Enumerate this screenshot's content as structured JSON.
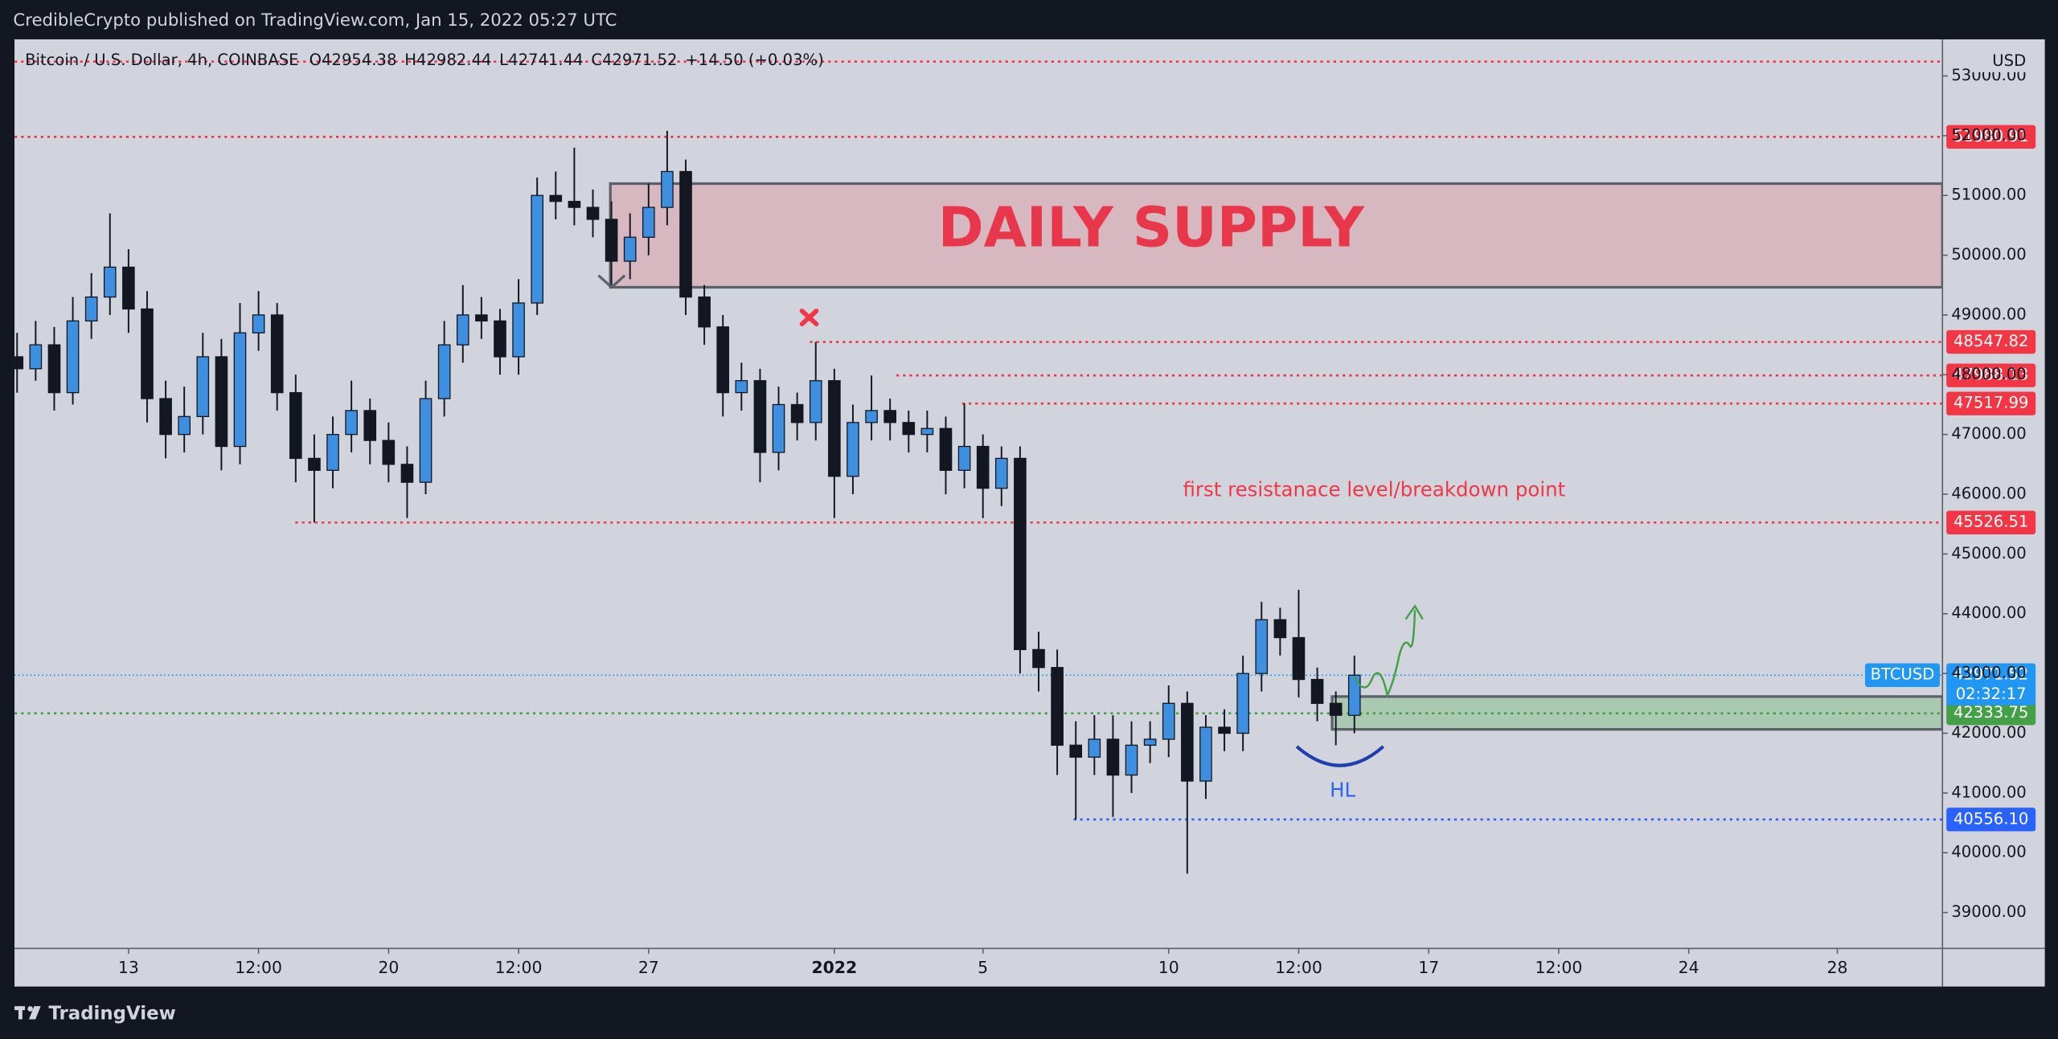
{
  "header": {
    "publisher": "CredibleCrypto published on TradingView.com, Jan 15, 2022 05:27 UTC"
  },
  "footer": {
    "brand": "TradingView"
  },
  "chart_data": {
    "type": "candlestick",
    "title": "Bitcoin / U.S. Dollar, 4h, COINBASE",
    "ohlc_legend": [
      {
        "name": "O",
        "value": 42954.38
      },
      {
        "name": "H",
        "value": 42982.44
      },
      {
        "name": "L",
        "value": 42741.44
      },
      {
        "name": "C",
        "value": 42971.52
      }
    ],
    "change": "+14.50 (+0.03%)",
    "currency": "USD",
    "up_color": "#3f8fe0",
    "down_color": "#131722",
    "x": [
      -3,
      -2.5,
      -2,
      -1.5,
      -1,
      -0.5,
      0,
      0.5,
      1,
      1.5,
      2,
      2.5,
      3,
      3.5,
      4,
      4.5,
      5,
      5.5,
      6,
      6.5,
      7,
      7.5,
      8,
      8.5,
      9,
      9.5,
      10,
      10.5,
      11,
      11.5,
      12,
      12.5,
      13,
      13.5,
      14,
      14.5,
      15,
      15.5,
      16,
      16.5,
      17,
      17.5,
      18,
      18.5,
      19,
      19.5,
      20,
      20.5,
      21,
      21.5,
      22,
      22.5,
      23,
      23.5,
      24,
      24.5,
      25,
      25.5,
      26,
      26.5,
      27,
      27.5,
      28,
      28.5,
      29,
      29.5,
      30,
      30.5,
      31,
      31.5,
      32,
      32.5,
      33
    ],
    "open": [
      48300,
      48100,
      48500,
      47700,
      48900,
      49300,
      49800,
      49100,
      47600,
      47000,
      47300,
      48300,
      46800,
      48700,
      49000,
      47700,
      46600,
      46400,
      47000,
      47400,
      46900,
      46500,
      46200,
      47600,
      48500,
      49000,
      48900,
      48300,
      49200,
      51000,
      50900,
      50800,
      50600,
      49900,
      50300,
      50800,
      51400,
      49300,
      48800,
      47700,
      47900,
      46700,
      47500,
      47200,
      47900,
      46300,
      47200,
      47400,
      47200,
      47000,
      47100,
      46400,
      46800,
      46100,
      46600,
      43400,
      43100,
      41800,
      41600,
      41900,
      41300,
      41800,
      41900,
      42500,
      41200,
      42100,
      42000,
      43000,
      43900,
      43600,
      42900,
      42500,
      42300
    ],
    "high": [
      48700,
      48900,
      48800,
      49300,
      49700,
      50700,
      50100,
      49400,
      47900,
      47800,
      48700,
      48600,
      49200,
      49400,
      49200,
      48000,
      47000,
      47300,
      47900,
      47600,
      47200,
      46800,
      47900,
      48900,
      49500,
      49300,
      49100,
      49600,
      51300,
      51400,
      51800,
      51100,
      50900,
      50700,
      51200,
      52080,
      51600,
      49500,
      49000,
      48200,
      48100,
      47800,
      47700,
      48547.82,
      48100,
      47500,
      47988.13,
      47600,
      47400,
      47400,
      47300,
      47517.99,
      47000,
      46800,
      46800,
      43700,
      43400,
      42200,
      42300,
      42300,
      42200,
      42200,
      42800,
      42700,
      42300,
      42400,
      43300,
      44200,
      44100,
      44400,
      43100,
      42700,
      43300
    ],
    "low": [
      47700,
      47900,
      47400,
      47500,
      48600,
      49000,
      48700,
      47200,
      46600,
      46700,
      47000,
      46400,
      46500,
      48400,
      47400,
      46200,
      45526.51,
      46100,
      46700,
      46500,
      46200,
      45600,
      46000,
      47300,
      48200,
      48600,
      48000,
      48000,
      49000,
      50600,
      50500,
      50300,
      49500,
      49600,
      50000,
      50500,
      49000,
      48500,
      47300,
      47400,
      46200,
      46400,
      46900,
      46900,
      45600,
      46000,
      46900,
      46900,
      46700,
      46700,
      46000,
      46100,
      45600,
      45800,
      43000,
      42700,
      41300,
      40556.1,
      41300,
      40600,
      41000,
      41500,
      41600,
      39650,
      40900,
      41700,
      41700,
      42700,
      43300,
      42600,
      42200,
      41800,
      42000
    ],
    "close": [
      48100,
      48500,
      47700,
      48900,
      49300,
      49800,
      49100,
      47600,
      47000,
      47300,
      48300,
      46800,
      48700,
      49000,
      47700,
      46600,
      46400,
      47000,
      47400,
      46900,
      46500,
      46200,
      47600,
      48500,
      49000,
      48900,
      48300,
      49200,
      51000,
      50900,
      50800,
      50600,
      49900,
      50300,
      50800,
      51400,
      49300,
      48800,
      47700,
      47900,
      46700,
      47500,
      47200,
      47900,
      46300,
      47200,
      47400,
      47200,
      47000,
      47100,
      46400,
      46800,
      46100,
      46600,
      43400,
      43100,
      41800,
      41600,
      41900,
      41300,
      41800,
      41900,
      42500,
      41200,
      42100,
      42000,
      43000,
      43900,
      43600,
      42900,
      42500,
      42300,
      42971.52
    ],
    "xlim": [
      -3.07,
      48.83
    ],
    "xticks": [
      {
        "value": 0,
        "label": "13"
      },
      {
        "value": 3.5,
        "label": "12:00"
      },
      {
        "value": 7,
        "label": "20"
      },
      {
        "value": 10.5,
        "label": "12:00"
      },
      {
        "value": 14,
        "label": "27"
      },
      {
        "value": 19,
        "label": "2022"
      },
      {
        "value": 23,
        "label": "5"
      },
      {
        "value": 28,
        "label": "10"
      },
      {
        "value": 31.5,
        "label": "12:00"
      },
      {
        "value": 35,
        "label": "17"
      },
      {
        "value": 38.5,
        "label": "12:00"
      },
      {
        "value": 42,
        "label": "24"
      },
      {
        "value": 46,
        "label": "28"
      }
    ],
    "ylim": [
      38398,
      53612
    ],
    "yticks": [
      {
        "value": 39000,
        "label": "39000.00"
      },
      {
        "value": 40000,
        "label": "40000.00"
      },
      {
        "value": 41000,
        "label": "41000.00"
      },
      {
        "value": 42000,
        "label": "42000.00"
      },
      {
        "value": 43000,
        "label": "43000.00"
      },
      {
        "value": 44000,
        "label": "44000.00"
      },
      {
        "value": 45000,
        "label": "45000.00"
      },
      {
        "value": 46000,
        "label": "46000.00"
      },
      {
        "value": 47000,
        "label": "47000.00"
      },
      {
        "value": 48000,
        "label": "48000.00"
      },
      {
        "value": 49000,
        "label": "49000.00"
      },
      {
        "value": 50000,
        "label": "50000.00"
      },
      {
        "value": 51000,
        "label": "51000.00"
      },
      {
        "value": 52000,
        "label": "52000.00"
      },
      {
        "value": 53000,
        "label": "53000.00"
      }
    ],
    "levels": [
      {
        "value": 53239,
        "color": "#f23645",
        "badge": false
      },
      {
        "value": 51980.91,
        "color": "#f23645",
        "badge": true
      },
      {
        "value": 48547.82,
        "color": "#f23645",
        "from": 18.34,
        "badge": true
      },
      {
        "value": 47988.13,
        "color": "#f23645",
        "from": 20.67,
        "badge": true
      },
      {
        "value": 47517.99,
        "color": "#f23645",
        "from": 22.44,
        "badge": true
      },
      {
        "value": 45526.51,
        "color": "#f23645",
        "from": 4.49,
        "badge": true
      },
      {
        "value": 42333.75,
        "color": "#43a047",
        "badge": true
      },
      {
        "value": 40556.1,
        "label": "40556.10",
        "color": "#2962ff",
        "from": 25.44,
        "badge": true
      }
    ],
    "zones": [
      {
        "name": "DAILY SUPPLY",
        "low": 49463,
        "high": 51198,
        "from": 12.97,
        "fill": "rgba(242,54,69,0.18)"
      },
      {
        "low": 42065,
        "high": 42614,
        "from": 32.4,
        "fill": "rgba(76,175,80,0.3)"
      }
    ],
    "annotations": [
      "first resistanace level/breakdown point",
      "HL"
    ],
    "last_price": {
      "symbol": "BTCUSD",
      "value": 42971.52,
      "countdown": "02:32:17",
      "color": "#2196f3"
    }
  }
}
